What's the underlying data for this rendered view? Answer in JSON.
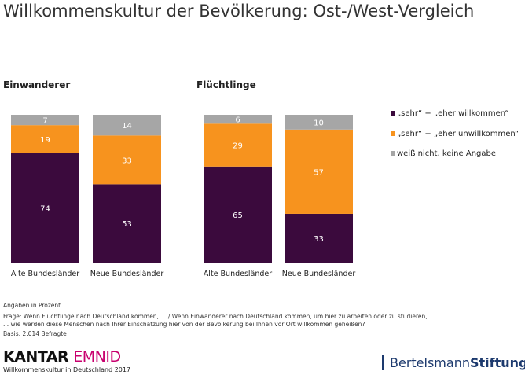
{
  "title": "Willkommenskultur der Bevölkerung: Ost-/West-Vergleich",
  "chart_data": [
    {
      "type": "stacked-bar",
      "title": "Einwanderer",
      "categories": [
        "Alte Bundesländer",
        "Neue Bundesländer"
      ],
      "series": [
        {
          "name": "„sehr“ + „eher willkommen“",
          "values": [
            74,
            53
          ]
        },
        {
          "name": "„sehr“ + „eher unwillkommen“",
          "values": [
            19,
            33
          ]
        },
        {
          "name": "weiß nicht, keine Angabe",
          "values": [
            7,
            14
          ]
        }
      ],
      "ylim": [
        0,
        100
      ]
    },
    {
      "type": "stacked-bar",
      "title": "Flüchtlinge",
      "categories": [
        "Alte Bundesländer",
        "Neue Bundesländer"
      ],
      "series": [
        {
          "name": "„sehr“ + „eher willkommen“",
          "values": [
            65,
            33
          ]
        },
        {
          "name": "„sehr“ + „eher unwillkommen“",
          "values": [
            29,
            57
          ]
        },
        {
          "name": "weiß nicht, keine Angabe",
          "values": [
            6,
            10
          ]
        }
      ],
      "ylim": [
        0,
        100
      ]
    }
  ],
  "legend": [
    "„sehr“ + „eher willkommen“",
    "„sehr“ + „eher unwillkommen“",
    "weiß nicht, keine Angabe"
  ],
  "colors": [
    "#3b0a3d",
    "#f7931e",
    "#a6a6a6"
  ],
  "notes": {
    "unit": "Angaben in Prozent",
    "q1": "Frage: Wenn Flüchtlinge nach Deutschland kommen, ... / Wenn Einwanderer nach Deutschland kommen, um hier zu arbeiten oder zu studieren, ...",
    "q2": "... wie werden diese Menschen nach Ihrer Einschätzung hier von der Bevölkerung bei Ihnen vor Ort willkommen geheißen?",
    "basis": "Basis: 2.014 Befragte"
  },
  "footer": {
    "kantar1": "KANTAR",
    "kantar2": "EMNID",
    "sub": "Willkommenskultur in Deutschland 2017",
    "bs1": "Bertelsmann",
    "bs2": "Stiftung"
  }
}
